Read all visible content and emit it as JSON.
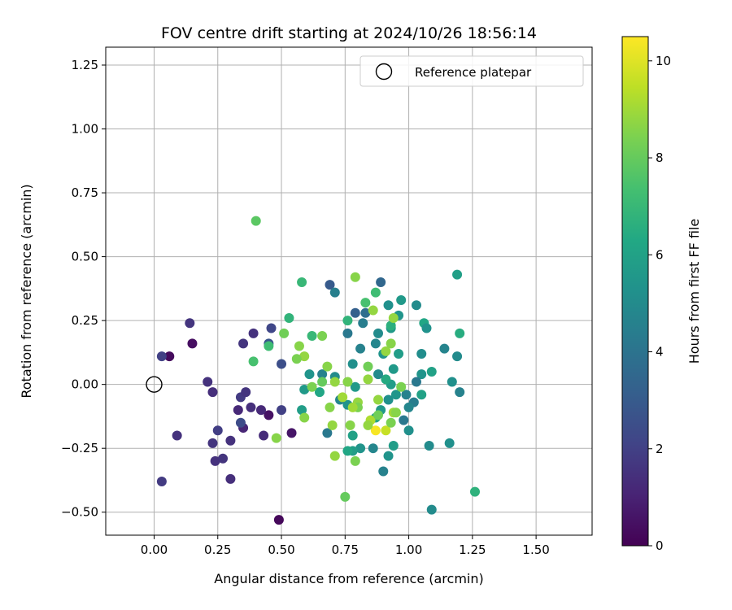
{
  "chart_data": {
    "type": "scatter",
    "title": "FOV centre drift starting at 2024/10/26 18:56:14",
    "xlabel": "Angular distance from reference (arcmin)",
    "ylabel": "Rotation from reference (arcmin)",
    "xlim": [
      -0.19,
      1.72
    ],
    "ylim": [
      -0.59,
      1.32
    ],
    "xticks": [
      0.0,
      0.25,
      0.5,
      0.75,
      1.0,
      1.25,
      1.5
    ],
    "xtick_labels": [
      "0.00",
      "0.25",
      "0.50",
      "0.75",
      "1.00",
      "1.25",
      "1.50"
    ],
    "yticks": [
      -0.5,
      -0.25,
      0.0,
      0.25,
      0.5,
      0.75,
      1.0,
      1.25
    ],
    "ytick_labels": [
      "−0.50",
      "−0.25",
      "0.00",
      "0.25",
      "0.50",
      "0.75",
      "1.00",
      "1.25"
    ],
    "grid": true,
    "legend": {
      "placement": "top-right",
      "label": "Reference platepar"
    },
    "reference_point": {
      "x": 0.0,
      "y": 0.0
    },
    "colorbar": {
      "label": "Hours from first FF file",
      "colormap": "viridis",
      "range": [
        0,
        10.5
      ],
      "ticks": [
        0,
        2,
        4,
        6,
        8,
        10
      ],
      "tick_labels": [
        "0",
        "2",
        "4",
        "6",
        "8",
        "10"
      ]
    },
    "points": [
      {
        "x": 0.06,
        "y": 0.11,
        "c": 0.3
      },
      {
        "x": 0.15,
        "y": 0.16,
        "c": 0.4
      },
      {
        "x": 0.45,
        "y": -0.12,
        "c": 0.5
      },
      {
        "x": 0.54,
        "y": -0.19,
        "c": 0.6
      },
      {
        "x": 0.49,
        "y": -0.53,
        "c": 0.2
      },
      {
        "x": 0.03,
        "y": 0.11,
        "c": 2.0
      },
      {
        "x": 0.14,
        "y": 0.24,
        "c": 1.6
      },
      {
        "x": 0.09,
        "y": -0.2,
        "c": 1.5
      },
      {
        "x": 0.03,
        "y": -0.38,
        "c": 1.8
      },
      {
        "x": 0.21,
        "y": 0.01,
        "c": 1.5
      },
      {
        "x": 0.23,
        "y": -0.03,
        "c": 1.4
      },
      {
        "x": 0.23,
        "y": -0.23,
        "c": 1.6
      },
      {
        "x": 0.24,
        "y": -0.3,
        "c": 1.5
      },
      {
        "x": 0.27,
        "y": -0.29,
        "c": 1.6
      },
      {
        "x": 0.25,
        "y": -0.18,
        "c": 1.9
      },
      {
        "x": 0.3,
        "y": -0.22,
        "c": 1.5
      },
      {
        "x": 0.3,
        "y": -0.37,
        "c": 1.4
      },
      {
        "x": 0.33,
        "y": -0.1,
        "c": 1.2
      },
      {
        "x": 0.34,
        "y": -0.05,
        "c": 1.8
      },
      {
        "x": 0.36,
        "y": -0.03,
        "c": 1.6
      },
      {
        "x": 0.35,
        "y": -0.17,
        "c": 1.1
      },
      {
        "x": 0.34,
        "y": -0.15,
        "c": 2.4
      },
      {
        "x": 0.38,
        "y": -0.09,
        "c": 1.4
      },
      {
        "x": 0.42,
        "y": -0.1,
        "c": 1.2
      },
      {
        "x": 0.43,
        "y": -0.2,
        "c": 1.3
      },
      {
        "x": 0.35,
        "y": 0.16,
        "c": 1.6
      },
      {
        "x": 0.39,
        "y": 0.2,
        "c": 1.5
      },
      {
        "x": 0.46,
        "y": 0.22,
        "c": 2.2
      },
      {
        "x": 0.45,
        "y": 0.16,
        "c": 2.8
      },
      {
        "x": 0.5,
        "y": 0.08,
        "c": 2.5
      },
      {
        "x": 0.5,
        "y": -0.1,
        "c": 2.0
      },
      {
        "x": 0.69,
        "y": 0.39,
        "c": 3.0
      },
      {
        "x": 0.71,
        "y": 0.36,
        "c": 4.5
      },
      {
        "x": 0.89,
        "y": 0.4,
        "c": 3.5
      },
      {
        "x": 0.79,
        "y": 0.28,
        "c": 3.2
      },
      {
        "x": 0.83,
        "y": 0.28,
        "c": 3.8
      },
      {
        "x": 0.76,
        "y": 0.2,
        "c": 4.2
      },
      {
        "x": 0.82,
        "y": 0.24,
        "c": 4.4
      },
      {
        "x": 0.81,
        "y": 0.14,
        "c": 4.6
      },
      {
        "x": 0.87,
        "y": 0.16,
        "c": 4.8
      },
      {
        "x": 0.88,
        "y": 0.2,
        "c": 5.0
      },
      {
        "x": 0.92,
        "y": 0.31,
        "c": 5.2
      },
      {
        "x": 0.96,
        "y": 0.27,
        "c": 5.4
      },
      {
        "x": 0.97,
        "y": 0.33,
        "c": 5.6
      },
      {
        "x": 1.03,
        "y": 0.31,
        "c": 5.0
      },
      {
        "x": 1.06,
        "y": 0.24,
        "c": 6.2
      },
      {
        "x": 1.07,
        "y": 0.22,
        "c": 5.3
      },
      {
        "x": 1.05,
        "y": 0.12,
        "c": 5.1
      },
      {
        "x": 1.14,
        "y": 0.14,
        "c": 4.7
      },
      {
        "x": 1.19,
        "y": 0.43,
        "c": 5.9
      },
      {
        "x": 1.2,
        "y": 0.2,
        "c": 6.5
      },
      {
        "x": 1.19,
        "y": 0.11,
        "c": 5.0
      },
      {
        "x": 1.17,
        "y": 0.01,
        "c": 5.2
      },
      {
        "x": 1.2,
        "y": -0.03,
        "c": 4.6
      },
      {
        "x": 1.09,
        "y": 0.05,
        "c": 6.0
      },
      {
        "x": 1.05,
        "y": 0.04,
        "c": 5.4
      },
      {
        "x": 1.03,
        "y": 0.01,
        "c": 4.2
      },
      {
        "x": 1.05,
        "y": -0.04,
        "c": 6.0
      },
      {
        "x": 1.02,
        "y": -0.07,
        "c": 4.4
      },
      {
        "x": 1.0,
        "y": -0.09,
        "c": 4.8
      },
      {
        "x": 0.98,
        "y": -0.14,
        "c": 4.2
      },
      {
        "x": 1.0,
        "y": -0.18,
        "c": 5.2
      },
      {
        "x": 1.08,
        "y": -0.24,
        "c": 5.0
      },
      {
        "x": 1.16,
        "y": -0.23,
        "c": 5.2
      },
      {
        "x": 1.09,
        "y": -0.49,
        "c": 5.0
      },
      {
        "x": 1.26,
        "y": -0.42,
        "c": 6.7
      },
      {
        "x": 0.94,
        "y": -0.24,
        "c": 5.8
      },
      {
        "x": 0.92,
        "y": -0.28,
        "c": 5.4
      },
      {
        "x": 0.9,
        "y": -0.34,
        "c": 4.6
      },
      {
        "x": 0.86,
        "y": -0.25,
        "c": 4.8
      },
      {
        "x": 0.81,
        "y": -0.25,
        "c": 5.4
      },
      {
        "x": 0.78,
        "y": -0.26,
        "c": 5.8
      },
      {
        "x": 0.76,
        "y": -0.26,
        "c": 6.2
      },
      {
        "x": 0.78,
        "y": -0.2,
        "c": 6.0
      },
      {
        "x": 0.87,
        "y": -0.13,
        "c": 6.0
      },
      {
        "x": 0.89,
        "y": -0.1,
        "c": 5.6
      },
      {
        "x": 0.92,
        "y": -0.06,
        "c": 5.2
      },
      {
        "x": 0.95,
        "y": -0.04,
        "c": 5.5
      },
      {
        "x": 0.99,
        "y": -0.04,
        "c": 4.6
      },
      {
        "x": 0.93,
        "y": 0.0,
        "c": 5.8
      },
      {
        "x": 0.91,
        "y": 0.02,
        "c": 6.4
      },
      {
        "x": 0.88,
        "y": 0.04,
        "c": 5.0
      },
      {
        "x": 0.94,
        "y": 0.06,
        "c": 5.6
      },
      {
        "x": 0.9,
        "y": 0.12,
        "c": 5.4
      },
      {
        "x": 0.96,
        "y": 0.12,
        "c": 5.8
      },
      {
        "x": 0.93,
        "y": 0.22,
        "c": 5.6
      },
      {
        "x": 0.93,
        "y": 0.23,
        "c": 6.6
      },
      {
        "x": 0.87,
        "y": 0.36,
        "c": 7.2
      },
      {
        "x": 0.83,
        "y": 0.32,
        "c": 7.4
      },
      {
        "x": 0.76,
        "y": 0.25,
        "c": 6.8
      },
      {
        "x": 0.78,
        "y": 0.08,
        "c": 5.2
      },
      {
        "x": 0.79,
        "y": -0.01,
        "c": 5.6
      },
      {
        "x": 0.76,
        "y": -0.08,
        "c": 5.4
      },
      {
        "x": 0.73,
        "y": -0.06,
        "c": 4.8
      },
      {
        "x": 0.71,
        "y": 0.03,
        "c": 5.0
      },
      {
        "x": 0.66,
        "y": 0.04,
        "c": 4.6
      },
      {
        "x": 0.61,
        "y": 0.04,
        "c": 5.4
      },
      {
        "x": 0.59,
        "y": -0.02,
        "c": 5.6
      },
      {
        "x": 0.65,
        "y": -0.03,
        "c": 6.2
      },
      {
        "x": 0.58,
        "y": -0.1,
        "c": 5.8
      },
      {
        "x": 0.68,
        "y": -0.19,
        "c": 4.2
      },
      {
        "x": 0.58,
        "y": 0.4,
        "c": 7.0
      },
      {
        "x": 0.53,
        "y": 0.26,
        "c": 6.8
      },
      {
        "x": 0.62,
        "y": 0.19,
        "c": 7.0
      },
      {
        "x": 0.45,
        "y": 0.15,
        "c": 7.2
      },
      {
        "x": 0.39,
        "y": 0.09,
        "c": 7.4
      },
      {
        "x": 0.4,
        "y": 0.64,
        "c": 7.8
      },
      {
        "x": 0.51,
        "y": 0.2,
        "c": 8.2
      },
      {
        "x": 0.57,
        "y": 0.15,
        "c": 8.6
      },
      {
        "x": 0.59,
        "y": 0.11,
        "c": 8.8
      },
      {
        "x": 0.56,
        "y": 0.1,
        "c": 8.4
      },
      {
        "x": 0.62,
        "y": -0.01,
        "c": 8.4
      },
      {
        "x": 0.59,
        "y": -0.13,
        "c": 8.6
      },
      {
        "x": 0.48,
        "y": -0.21,
        "c": 8.6
      },
      {
        "x": 0.66,
        "y": 0.19,
        "c": 8.4
      },
      {
        "x": 0.68,
        "y": 0.07,
        "c": 8.6
      },
      {
        "x": 0.71,
        "y": 0.01,
        "c": 8.8
      },
      {
        "x": 0.66,
        "y": 0.01,
        "c": 8.0
      },
      {
        "x": 0.69,
        "y": -0.09,
        "c": 8.6
      },
      {
        "x": 0.74,
        "y": -0.05,
        "c": 9.0
      },
      {
        "x": 0.7,
        "y": -0.16,
        "c": 8.8
      },
      {
        "x": 0.71,
        "y": -0.28,
        "c": 8.8
      },
      {
        "x": 0.77,
        "y": -0.16,
        "c": 8.6
      },
      {
        "x": 0.79,
        "y": -0.3,
        "c": 8.4
      },
      {
        "x": 0.75,
        "y": -0.44,
        "c": 8.0
      },
      {
        "x": 0.79,
        "y": 0.42,
        "c": 8.6
      },
      {
        "x": 0.86,
        "y": 0.29,
        "c": 8.8
      },
      {
        "x": 0.91,
        "y": 0.13,
        "c": 8.8
      },
      {
        "x": 0.93,
        "y": 0.16,
        "c": 8.6
      },
      {
        "x": 0.84,
        "y": 0.07,
        "c": 8.2
      },
      {
        "x": 0.84,
        "y": 0.02,
        "c": 8.8
      },
      {
        "x": 0.76,
        "y": 0.01,
        "c": 8.6
      },
      {
        "x": 0.8,
        "y": -0.07,
        "c": 8.8
      },
      {
        "x": 0.8,
        "y": -0.09,
        "c": 8.4
      },
      {
        "x": 0.78,
        "y": -0.09,
        "c": 9.0
      },
      {
        "x": 0.85,
        "y": -0.14,
        "c": 9.2
      },
      {
        "x": 0.88,
        "y": -0.06,
        "c": 8.8
      },
      {
        "x": 0.88,
        "y": -0.12,
        "c": 8.2
      },
      {
        "x": 0.91,
        "y": -0.18,
        "c": 9.6
      },
      {
        "x": 0.93,
        "y": -0.15,
        "c": 8.4
      },
      {
        "x": 0.94,
        "y": -0.11,
        "c": 9.0
      },
      {
        "x": 0.95,
        "y": -0.11,
        "c": 8.6
      },
      {
        "x": 0.97,
        "y": -0.01,
        "c": 8.4
      },
      {
        "x": 0.94,
        "y": 0.26,
        "c": 8.8
      },
      {
        "x": 0.87,
        "y": -0.18,
        "c": 10.4
      },
      {
        "x": 0.84,
        "y": -0.16,
        "c": 8.8
      }
    ]
  }
}
